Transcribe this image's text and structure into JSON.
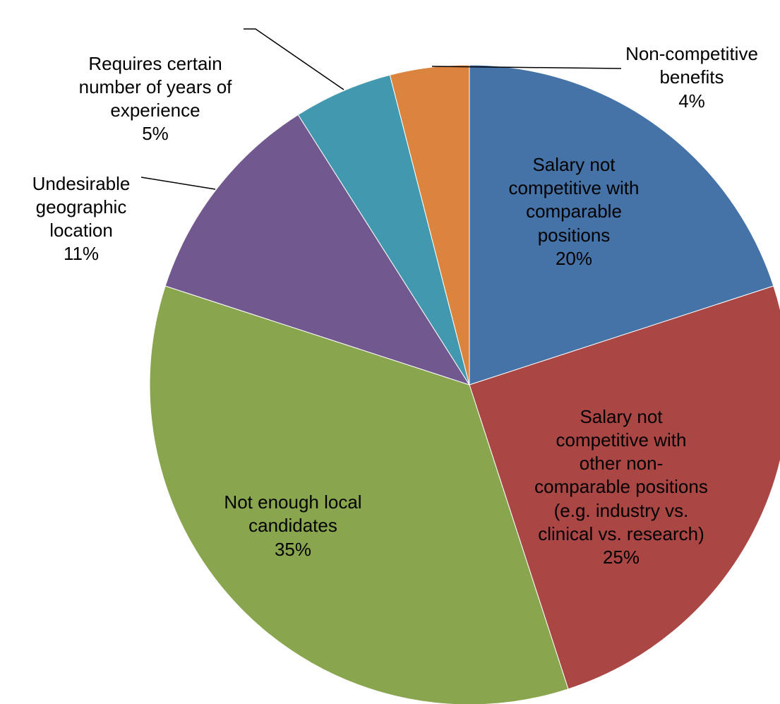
{
  "chart_data": {
    "type": "pie",
    "categories": [
      "Salary not competitive with comparable positions",
      "Salary not competitive with other non-comparable positions (e.g. industry vs. clinical vs. research)",
      "Not enough local candidates",
      "Undesirable geographic location",
      "Requires certain number of years of experience",
      "Non-competitive benefits"
    ],
    "values": [
      20,
      25,
      35,
      11,
      5,
      4
    ],
    "value_labels": [
      "20%",
      "25%",
      "35%",
      "11%",
      "5%",
      "4%"
    ],
    "colors": [
      "#4572a7",
      "#aa4643",
      "#89a54e",
      "#71588f",
      "#4198af",
      "#db843d"
    ]
  }
}
